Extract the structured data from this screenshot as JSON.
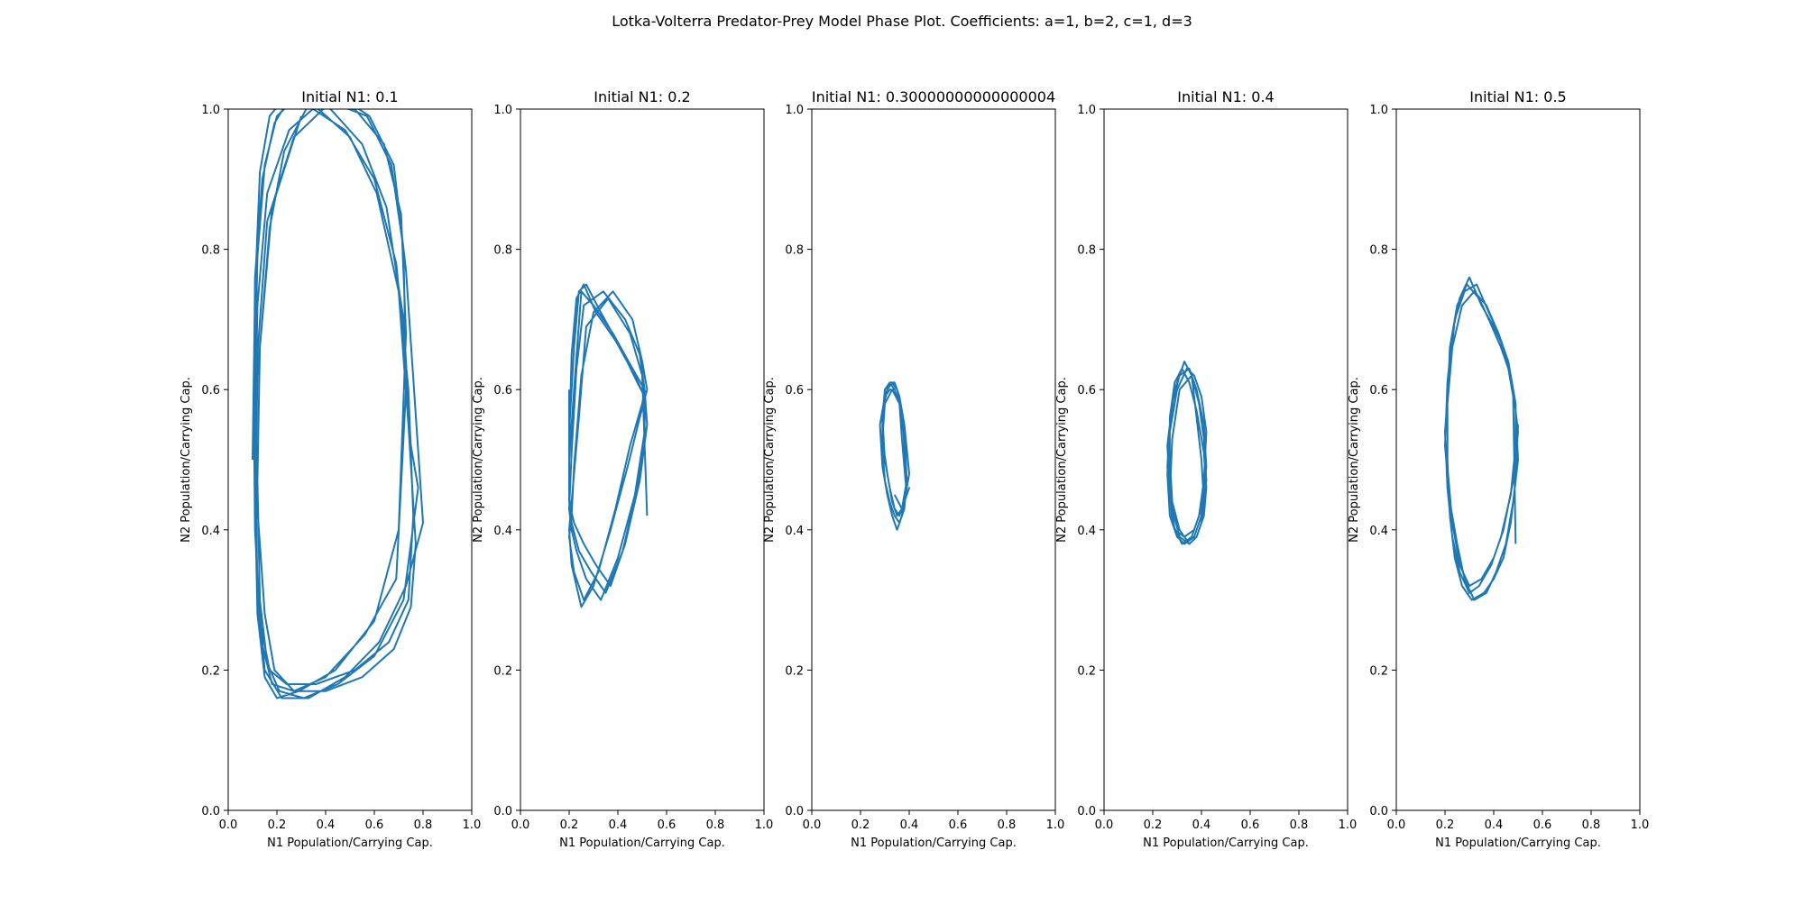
{
  "figure": {
    "title": "Lotka-Volterra Predator-Prey Model Phase Plot. Coefficients: a=1, b=2, c=1, d=3"
  },
  "chart_data": [
    {
      "type": "line",
      "title": "Initial N1: 0.1",
      "xlabel": "N1 Population/Carrying Cap.",
      "ylabel": "N2 Population/Carrying Cap.",
      "xlim": [
        0,
        1
      ],
      "ylim": [
        0,
        1
      ],
      "xticks": [
        "0.0",
        "0.2",
        "0.4",
        "0.6",
        "0.8",
        "1.0"
      ],
      "yticks": [
        "0.0",
        "0.2",
        "0.4",
        "0.6",
        "0.8",
        "1.0"
      ],
      "grid": false,
      "color": "#1f77b4",
      "series": [
        {
          "x": [
            0.1,
            0.11,
            0.13,
            0.17,
            0.24,
            0.35,
            0.48,
            0.6,
            0.69,
            0.74,
            0.76,
            0.74,
            0.66,
            0.52,
            0.36,
            0.24,
            0.17,
            0.13,
            0.11,
            0.105,
            0.11,
            0.14,
            0.19,
            0.26,
            0.37,
            0.5,
            0.61,
            0.7,
            0.74,
            0.77,
            0.75,
            0.68,
            0.55,
            0.4,
            0.27,
            0.19,
            0.15,
            0.12,
            0.11,
            0.12,
            0.15,
            0.2,
            0.29,
            0.42,
            0.55,
            0.65,
            0.72,
            0.75,
            0.78,
            0.72,
            0.6,
            0.45,
            0.31,
            0.21,
            0.16,
            0.13,
            0.12,
            0.13,
            0.17,
            0.23,
            0.32,
            0.45,
            0.58,
            0.68,
            0.73,
            0.8,
            0.73,
            0.62,
            0.48,
            0.33,
            0.22,
            0.15,
            0.12,
            0.11,
            0.12,
            0.16,
            0.25,
            0.38,
            0.52,
            0.64,
            0.71,
            0.73,
            0.7,
            0.6,
            0.44,
            0.29,
            0.2,
            0.15,
            0.12,
            0.11,
            0.12,
            0.16,
            0.27,
            0.42,
            0.57,
            0.67,
            0.72,
            0.73,
            0.69,
            0.56,
            0.4,
            0.27,
            0.18,
            0.13,
            0.11,
            0.12,
            0.18,
            0.3
          ],
          "y": [
            0.5,
            0.74,
            0.91,
            0.99,
            1.02,
            1.0,
            0.97,
            0.9,
            0.78,
            0.6,
            0.42,
            0.3,
            0.24,
            0.2,
            0.18,
            0.18,
            0.2,
            0.27,
            0.4,
            0.58,
            0.76,
            0.9,
            0.98,
            1.02,
            1.0,
            0.96,
            0.88,
            0.74,
            0.55,
            0.38,
            0.29,
            0.23,
            0.19,
            0.17,
            0.17,
            0.2,
            0.28,
            0.43,
            0.62,
            0.79,
            0.92,
            0.99,
            1.02,
            1.0,
            0.95,
            0.86,
            0.7,
            0.52,
            0.46,
            0.3,
            0.22,
            0.18,
            0.16,
            0.17,
            0.21,
            0.3,
            0.47,
            0.66,
            0.83,
            0.94,
            1.0,
            1.02,
            0.99,
            0.92,
            0.77,
            0.41,
            0.32,
            0.24,
            0.19,
            0.16,
            0.16,
            0.2,
            0.32,
            0.52,
            0.72,
            0.88,
            0.97,
            1.01,
            1.0,
            0.95,
            0.85,
            0.68,
            0.4,
            0.27,
            0.2,
            0.17,
            0.16,
            0.19,
            0.28,
            0.45,
            0.65,
            0.84,
            0.96,
            1.01,
            0.99,
            0.92,
            0.8,
            0.6,
            0.33,
            0.25,
            0.19,
            0.17,
            0.18,
            0.25,
            0.42,
            0.62,
            0.86,
            0.99
          ]
        }
      ]
    },
    {
      "type": "line",
      "title": "Initial N1: 0.2",
      "xlabel": "N1 Population/Carrying Cap.",
      "ylabel": "N2 Population/Carrying Cap.",
      "xlim": [
        0,
        1
      ],
      "ylim": [
        0,
        1
      ],
      "xticks": [
        "0.0",
        "0.2",
        "0.4",
        "0.6",
        "0.8",
        "1.0"
      ],
      "yticks": [
        "0.0",
        "0.2",
        "0.4",
        "0.6",
        "0.8",
        "1.0"
      ],
      "grid": false,
      "color": "#1f77b4",
      "series": [
        {
          "x": [
            0.2,
            0.2,
            0.22,
            0.25,
            0.3,
            0.38,
            0.46,
            0.51,
            0.52,
            0.49,
            0.43,
            0.37,
            0.31,
            0.26,
            0.22,
            0.2,
            0.2,
            0.21,
            0.23,
            0.26,
            0.31,
            0.39,
            0.47,
            0.51,
            0.52,
            0.48,
            0.42,
            0.35,
            0.29,
            0.24,
            0.21,
            0.2,
            0.2,
            0.22,
            0.24,
            0.27,
            0.33,
            0.41,
            0.48,
            0.51,
            0.51,
            0.47,
            0.4,
            0.33,
            0.27,
            0.23,
            0.21,
            0.2,
            0.21,
            0.23,
            0.26,
            0.34,
            0.43,
            0.49,
            0.51,
            0.5,
            0.45,
            0.39,
            0.32,
            0.26,
            0.22,
            0.2,
            0.21,
            0.22,
            0.25,
            0.3,
            0.38,
            0.46,
            0.5,
            0.52,
            0.49,
            0.44,
            0.37,
            0.3,
            0.25,
            0.21,
            0.2,
            0.21,
            0.24,
            0.27,
            0.36,
            0.45,
            0.5,
            0.52
          ],
          "y": [
            0.6,
            0.5,
            0.6,
            0.74,
            0.72,
            0.68,
            0.63,
            0.6,
            0.55,
            0.47,
            0.38,
            0.32,
            0.35,
            0.38,
            0.41,
            0.44,
            0.52,
            0.65,
            0.73,
            0.75,
            0.71,
            0.67,
            0.62,
            0.59,
            0.55,
            0.46,
            0.37,
            0.31,
            0.34,
            0.37,
            0.41,
            0.45,
            0.54,
            0.66,
            0.74,
            0.75,
            0.71,
            0.66,
            0.61,
            0.59,
            0.54,
            0.45,
            0.36,
            0.3,
            0.33,
            0.37,
            0.4,
            0.43,
            0.51,
            0.63,
            0.72,
            0.74,
            0.7,
            0.65,
            0.6,
            0.58,
            0.52,
            0.43,
            0.34,
            0.3,
            0.34,
            0.39,
            0.42,
            0.49,
            0.62,
            0.71,
            0.74,
            0.7,
            0.64,
            0.6,
            0.56,
            0.49,
            0.4,
            0.32,
            0.29,
            0.35,
            0.4,
            0.44,
            0.56,
            0.69,
            0.73,
            0.68,
            0.62,
            0.42
          ]
        }
      ]
    },
    {
      "type": "line",
      "title": "Initial N1: 0.30000000000000004",
      "xlabel": "N1 Population/Carrying Cap.",
      "ylabel": "N2 Population/Carrying Cap.",
      "xlim": [
        0,
        1
      ],
      "ylim": [
        0,
        1
      ],
      "xticks": [
        "0.0",
        "0.2",
        "0.4",
        "0.6",
        "0.8",
        "1.0"
      ],
      "yticks": [
        "0.0",
        "0.2",
        "0.4",
        "0.6",
        "0.8",
        "1.0"
      ],
      "grid": false,
      "color": "#1f77b4",
      "series": [
        {
          "x": [
            0.3,
            0.29,
            0.3,
            0.32,
            0.34,
            0.36,
            0.38,
            0.39,
            0.38,
            0.36,
            0.34,
            0.32,
            0.3,
            0.29,
            0.29,
            0.31,
            0.33,
            0.35,
            0.37,
            0.38,
            0.39,
            0.37,
            0.35,
            0.33,
            0.31,
            0.29,
            0.28,
            0.3,
            0.32,
            0.34,
            0.36,
            0.38,
            0.4,
            0.38,
            0.36,
            0.34,
            0.32,
            0.3,
            0.29,
            0.3,
            0.32,
            0.34,
            0.36,
            0.37,
            0.39,
            0.4,
            0.37,
            0.35,
            0.33,
            0.31,
            0.29,
            0.3,
            0.33,
            0.36,
            0.38,
            0.39,
            0.37,
            0.34
          ],
          "y": [
            0.5,
            0.56,
            0.6,
            0.61,
            0.6,
            0.58,
            0.53,
            0.47,
            0.43,
            0.41,
            0.42,
            0.44,
            0.47,
            0.52,
            0.57,
            0.6,
            0.61,
            0.6,
            0.57,
            0.52,
            0.46,
            0.42,
            0.4,
            0.42,
            0.45,
            0.49,
            0.55,
            0.59,
            0.61,
            0.61,
            0.59,
            0.55,
            0.48,
            0.44,
            0.42,
            0.43,
            0.46,
            0.5,
            0.55,
            0.59,
            0.6,
            0.6,
            0.58,
            0.53,
            0.45,
            0.46,
            0.43,
            0.42,
            0.44,
            0.48,
            0.53,
            0.58,
            0.6,
            0.58,
            0.54,
            0.47,
            0.43,
            0.45
          ]
        }
      ]
    },
    {
      "type": "line",
      "title": "Initial N1: 0.4",
      "xlabel": "N1 Population/Carrying Cap.",
      "ylabel": "N2 Population/Carrying Cap.",
      "xlim": [
        0,
        1
      ],
      "ylim": [
        0,
        1
      ],
      "xticks": [
        "0.0",
        "0.2",
        "0.4",
        "0.6",
        "0.8",
        "1.0"
      ],
      "yticks": [
        "0.0",
        "0.2",
        "0.4",
        "0.6",
        "0.8",
        "1.0"
      ],
      "grid": false,
      "color": "#1f77b4",
      "series": [
        {
          "x": [
            0.4,
            0.41,
            0.4,
            0.38,
            0.35,
            0.31,
            0.28,
            0.27,
            0.27,
            0.29,
            0.32,
            0.35,
            0.38,
            0.41,
            0.42,
            0.41,
            0.38,
            0.35,
            0.31,
            0.28,
            0.26,
            0.27,
            0.29,
            0.33,
            0.36,
            0.39,
            0.41,
            0.42,
            0.4,
            0.37,
            0.33,
            0.3,
            0.27,
            0.26,
            0.27,
            0.3,
            0.34,
            0.37,
            0.4,
            0.42,
            0.41,
            0.39,
            0.36,
            0.32,
            0.28,
            0.27,
            0.26,
            0.28,
            0.31,
            0.35,
            0.38,
            0.41,
            0.42,
            0.4,
            0.37,
            0.33,
            0.29,
            0.27,
            0.28,
            0.31,
            0.36,
            0.4
          ],
          "y": [
            0.5,
            0.44,
            0.41,
            0.39,
            0.38,
            0.4,
            0.44,
            0.5,
            0.56,
            0.61,
            0.63,
            0.61,
            0.57,
            0.51,
            0.46,
            0.42,
            0.39,
            0.38,
            0.39,
            0.43,
            0.49,
            0.55,
            0.6,
            0.64,
            0.62,
            0.58,
            0.53,
            0.47,
            0.42,
            0.39,
            0.38,
            0.39,
            0.42,
            0.48,
            0.54,
            0.6,
            0.63,
            0.62,
            0.59,
            0.54,
            0.47,
            0.42,
            0.39,
            0.38,
            0.41,
            0.46,
            0.52,
            0.58,
            0.62,
            0.63,
            0.6,
            0.55,
            0.49,
            0.43,
            0.4,
            0.39,
            0.4,
            0.45,
            0.53,
            0.6,
            0.62,
            0.5
          ]
        }
      ]
    },
    {
      "type": "line",
      "title": "Initial N1: 0.5",
      "xlabel": "N1 Population/Carrying Cap.",
      "ylabel": "N2 Population/Carrying Cap.",
      "xlim": [
        0,
        1
      ],
      "ylim": [
        0,
        1
      ],
      "xticks": [
        "0.0",
        "0.2",
        "0.4",
        "0.6",
        "0.8",
        "1.0"
      ],
      "yticks": [
        "0.0",
        "0.2",
        "0.4",
        "0.6",
        "0.8",
        "1.0"
      ],
      "grid": false,
      "color": "#1f77b4",
      "series": [
        {
          "x": [
            0.5,
            0.49,
            0.47,
            0.44,
            0.4,
            0.36,
            0.31,
            0.27,
            0.24,
            0.22,
            0.21,
            0.21,
            0.22,
            0.25,
            0.29,
            0.34,
            0.38,
            0.43,
            0.47,
            0.49,
            0.5,
            0.48,
            0.45,
            0.41,
            0.37,
            0.32,
            0.28,
            0.25,
            0.22,
            0.2,
            0.21,
            0.23,
            0.26,
            0.3,
            0.35,
            0.4,
            0.44,
            0.47,
            0.49,
            0.49,
            0.47,
            0.43,
            0.39,
            0.34,
            0.3,
            0.26,
            0.23,
            0.21,
            0.2,
            0.22,
            0.24,
            0.28,
            0.33,
            0.38,
            0.42,
            0.46,
            0.48,
            0.5,
            0.48,
            0.44,
            0.4,
            0.35,
            0.3,
            0.26,
            0.23,
            0.21,
            0.21,
            0.23,
            0.27,
            0.32,
            0.37,
            0.42,
            0.46,
            0.48,
            0.49
          ],
          "y": [
            0.55,
            0.47,
            0.41,
            0.36,
            0.33,
            0.31,
            0.3,
            0.32,
            0.36,
            0.42,
            0.5,
            0.58,
            0.66,
            0.72,
            0.75,
            0.73,
            0.7,
            0.66,
            0.62,
            0.57,
            0.5,
            0.44,
            0.38,
            0.34,
            0.31,
            0.3,
            0.33,
            0.38,
            0.44,
            0.52,
            0.61,
            0.68,
            0.73,
            0.76,
            0.72,
            0.69,
            0.66,
            0.62,
            0.58,
            0.52,
            0.45,
            0.39,
            0.35,
            0.32,
            0.31,
            0.34,
            0.39,
            0.46,
            0.54,
            0.63,
            0.7,
            0.74,
            0.75,
            0.71,
            0.68,
            0.64,
            0.6,
            0.54,
            0.47,
            0.4,
            0.36,
            0.33,
            0.32,
            0.35,
            0.41,
            0.49,
            0.58,
            0.66,
            0.72,
            0.74,
            0.72,
            0.68,
            0.63,
            0.59,
            0.38
          ]
        }
      ]
    }
  ]
}
